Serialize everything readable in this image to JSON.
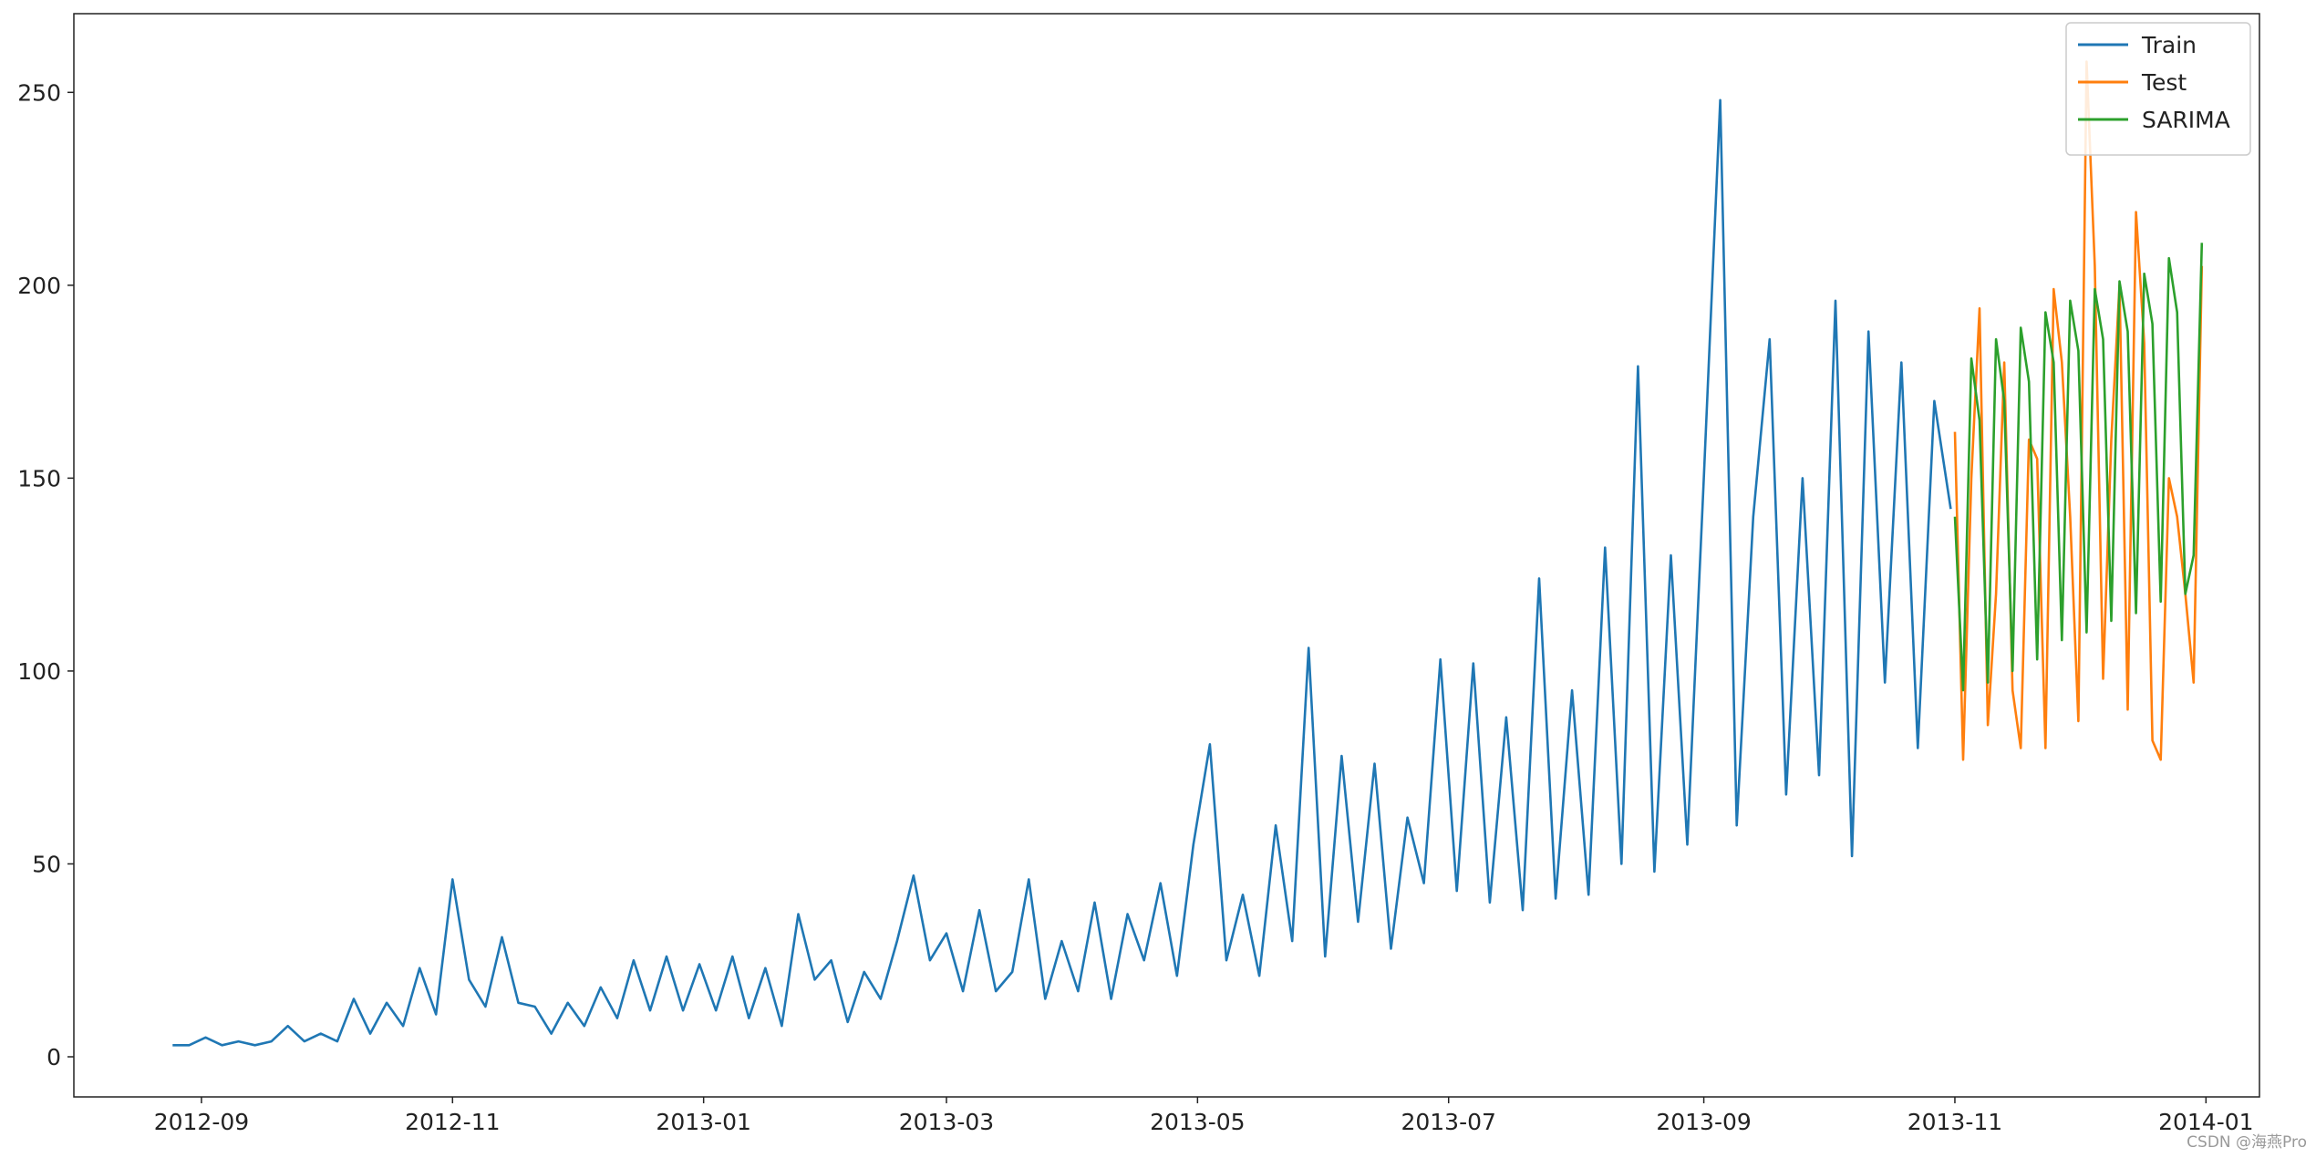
{
  "chart_data": {
    "type": "line",
    "watermark": "CSDN @海燕Pro",
    "legend": "upper right",
    "xlim": [
      "2012-08-01",
      "2014-01-14"
    ],
    "xticks": [
      "2012-09",
      "2012-11",
      "2013-01",
      "2013-03",
      "2013-05",
      "2013-07",
      "2013-09",
      "2013-11",
      "2014-01"
    ],
    "ylim": [
      -10.4,
      270.4
    ],
    "yticks": [
      0,
      50,
      100,
      150,
      200,
      250
    ],
    "series": [
      {
        "name": "Train",
        "color": "#1f77b4",
        "x": [
          "2012-08-25",
          "2012-08-29",
          "2012-09-02",
          "2012-09-06",
          "2012-09-10",
          "2012-09-14",
          "2012-09-18",
          "2012-09-22",
          "2012-09-26",
          "2012-09-30",
          "2012-10-04",
          "2012-10-08",
          "2012-10-12",
          "2012-10-16",
          "2012-10-20",
          "2012-10-24",
          "2012-10-28",
          "2012-11-01",
          "2012-11-05",
          "2012-11-09",
          "2012-11-13",
          "2012-11-17",
          "2012-11-21",
          "2012-11-25",
          "2012-11-29",
          "2012-12-03",
          "2012-12-07",
          "2012-12-11",
          "2012-12-15",
          "2012-12-19",
          "2012-12-23",
          "2012-12-27",
          "2012-12-31",
          "2013-01-04",
          "2013-01-08",
          "2013-01-12",
          "2013-01-16",
          "2013-01-20",
          "2013-01-24",
          "2013-01-28",
          "2013-02-01",
          "2013-02-05",
          "2013-02-09",
          "2013-02-13",
          "2013-02-17",
          "2013-02-21",
          "2013-02-25",
          "2013-03-01",
          "2013-03-05",
          "2013-03-09",
          "2013-03-13",
          "2013-03-17",
          "2013-03-21",
          "2013-03-25",
          "2013-03-29",
          "2013-04-02",
          "2013-04-06",
          "2013-04-10",
          "2013-04-14",
          "2013-04-18",
          "2013-04-22",
          "2013-04-26",
          "2013-04-30",
          "2013-05-04",
          "2013-05-08",
          "2013-05-12",
          "2013-05-16",
          "2013-05-20",
          "2013-05-24",
          "2013-05-28",
          "2013-06-01",
          "2013-06-05",
          "2013-06-09",
          "2013-06-13",
          "2013-06-17",
          "2013-06-21",
          "2013-06-25",
          "2013-06-29",
          "2013-07-03",
          "2013-07-07",
          "2013-07-11",
          "2013-07-15",
          "2013-07-19",
          "2013-07-23",
          "2013-07-27",
          "2013-07-31",
          "2013-08-04",
          "2013-08-08",
          "2013-08-12",
          "2013-08-16",
          "2013-08-20",
          "2013-08-24",
          "2013-08-28",
          "2013-09-01",
          "2013-09-05",
          "2013-09-09",
          "2013-09-13",
          "2013-09-17",
          "2013-09-21",
          "2013-09-25",
          "2013-09-29",
          "2013-10-03",
          "2013-10-07",
          "2013-10-11",
          "2013-10-15",
          "2013-10-19",
          "2013-10-23",
          "2013-10-27",
          "2013-10-31"
        ],
        "values": [
          3,
          3,
          5,
          3,
          4,
          3,
          4,
          8,
          4,
          6,
          4,
          15,
          6,
          14,
          8,
          23,
          11,
          46,
          20,
          13,
          31,
          14,
          13,
          6,
          14,
          8,
          18,
          10,
          25,
          12,
          26,
          12,
          24,
          12,
          26,
          10,
          23,
          8,
          37,
          20,
          25,
          9,
          22,
          15,
          30,
          47,
          25,
          32,
          17,
          38,
          17,
          22,
          46,
          15,
          30,
          17,
          40,
          15,
          37,
          25,
          45,
          21,
          55,
          81,
          25,
          42,
          21,
          60,
          30,
          106,
          26,
          78,
          35,
          76,
          28,
          62,
          45,
          103,
          43,
          102,
          40,
          88,
          38,
          124,
          41,
          95,
          42,
          132,
          50,
          179,
          48,
          130,
          55,
          150,
          248,
          60,
          140,
          186,
          68,
          150,
          73,
          196,
          52,
          188,
          97,
          180,
          80,
          170,
          142
        ]
      },
      {
        "name": "Test",
        "color": "#ff7f0e",
        "x": [
          "2013-11-01",
          "2013-11-03",
          "2013-11-05",
          "2013-11-07",
          "2013-11-09",
          "2013-11-11",
          "2013-11-13",
          "2013-11-15",
          "2013-11-17",
          "2013-11-19",
          "2013-11-21",
          "2013-11-23",
          "2013-11-25",
          "2013-11-27",
          "2013-11-29",
          "2013-12-01",
          "2013-12-03",
          "2013-12-05",
          "2013-12-07",
          "2013-12-09",
          "2013-12-11",
          "2013-12-13",
          "2013-12-15",
          "2013-12-17",
          "2013-12-19",
          "2013-12-21",
          "2013-12-23",
          "2013-12-25",
          "2013-12-27",
          "2013-12-29",
          "2013-12-31"
        ],
        "values": [
          162,
          77,
          150,
          194,
          86,
          120,
          180,
          95,
          80,
          160,
          155,
          80,
          199,
          180,
          140,
          87,
          258,
          205,
          98,
          160,
          200,
          90,
          219,
          185,
          82,
          77,
          150,
          140,
          120,
          97,
          205
        ]
      },
      {
        "name": "SARIMA",
        "color": "#2ca02c",
        "x": [
          "2013-11-01",
          "2013-11-03",
          "2013-11-05",
          "2013-11-07",
          "2013-11-09",
          "2013-11-11",
          "2013-11-13",
          "2013-11-15",
          "2013-11-17",
          "2013-11-19",
          "2013-11-21",
          "2013-11-23",
          "2013-11-25",
          "2013-11-27",
          "2013-11-29",
          "2013-12-01",
          "2013-12-03",
          "2013-12-05",
          "2013-12-07",
          "2013-12-09",
          "2013-12-11",
          "2013-12-13",
          "2013-12-15",
          "2013-12-17",
          "2013-12-19",
          "2013-12-21",
          "2013-12-23",
          "2013-12-25",
          "2013-12-27",
          "2013-12-29",
          "2013-12-31"
        ],
        "values": [
          140,
          95,
          181,
          165,
          97,
          186,
          170,
          100,
          189,
          175,
          103,
          193,
          180,
          108,
          196,
          183,
          110,
          199,
          186,
          113,
          201,
          188,
          115,
          203,
          190,
          118,
          207,
          193,
          120,
          130,
          211
        ]
      }
    ]
  }
}
